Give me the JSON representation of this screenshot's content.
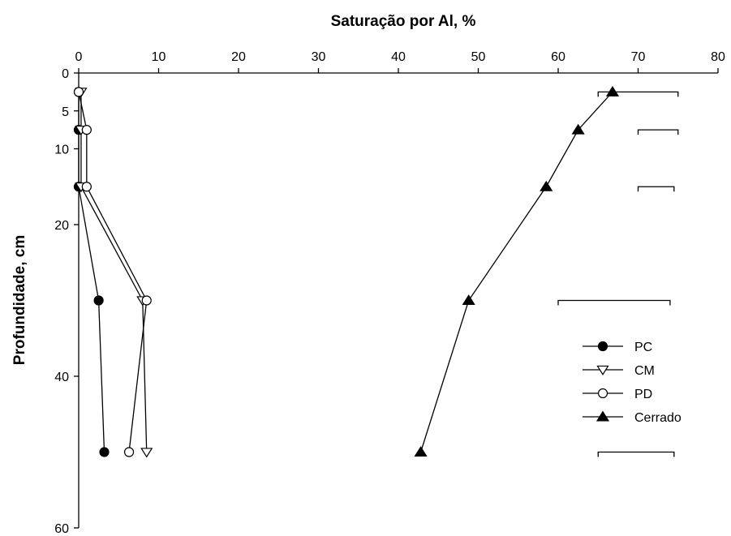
{
  "chart_data": {
    "type": "line",
    "title": "",
    "xlabel": "Saturação por Al, %",
    "ylabel": "Profundidade, cm",
    "x_axis_position": "top",
    "y_axis_inverted": true,
    "xlim": [
      0,
      80
    ],
    "ylim": [
      0,
      60
    ],
    "x_ticks": [
      0,
      10,
      20,
      30,
      40,
      50,
      60,
      70,
      80
    ],
    "y_ticks": [
      0,
      5,
      10,
      20,
      40,
      60
    ],
    "grid": false,
    "legend_position": "right",
    "series": [
      {
        "name": "PC",
        "marker": "filled-circle",
        "points": [
          [
            0,
            2.5
          ],
          [
            0,
            7.5
          ],
          [
            0,
            15
          ],
          [
            2.5,
            30
          ],
          [
            3.2,
            50
          ]
        ]
      },
      {
        "name": "CM",
        "marker": "open-triangle-down",
        "points": [
          [
            0.3,
            2.5
          ],
          [
            0.3,
            7.5
          ],
          [
            0.3,
            15
          ],
          [
            8,
            30
          ],
          [
            8.5,
            50
          ]
        ]
      },
      {
        "name": "PD",
        "marker": "open-circle",
        "points": [
          [
            0,
            2.5
          ],
          [
            1,
            7.5
          ],
          [
            1,
            15
          ],
          [
            8.5,
            30
          ],
          [
            6.3,
            50
          ]
        ]
      },
      {
        "name": "Cerrado",
        "marker": "filled-triangle-up",
        "points": [
          [
            66.8,
            2.5
          ],
          [
            62.5,
            7.5
          ],
          [
            58.5,
            15
          ],
          [
            48.8,
            30
          ],
          [
            42.8,
            50
          ]
        ]
      }
    ],
    "lsd_bars": [
      {
        "depth": 2.5,
        "x_start": 65,
        "x_end": 75
      },
      {
        "depth": 7.5,
        "x_start": 70,
        "x_end": 75
      },
      {
        "depth": 15,
        "x_start": 70,
        "x_end": 74.5
      },
      {
        "depth": 30,
        "x_start": 60,
        "x_end": 74
      },
      {
        "depth": 50,
        "x_start": 65,
        "x_end": 74.5
      }
    ]
  }
}
